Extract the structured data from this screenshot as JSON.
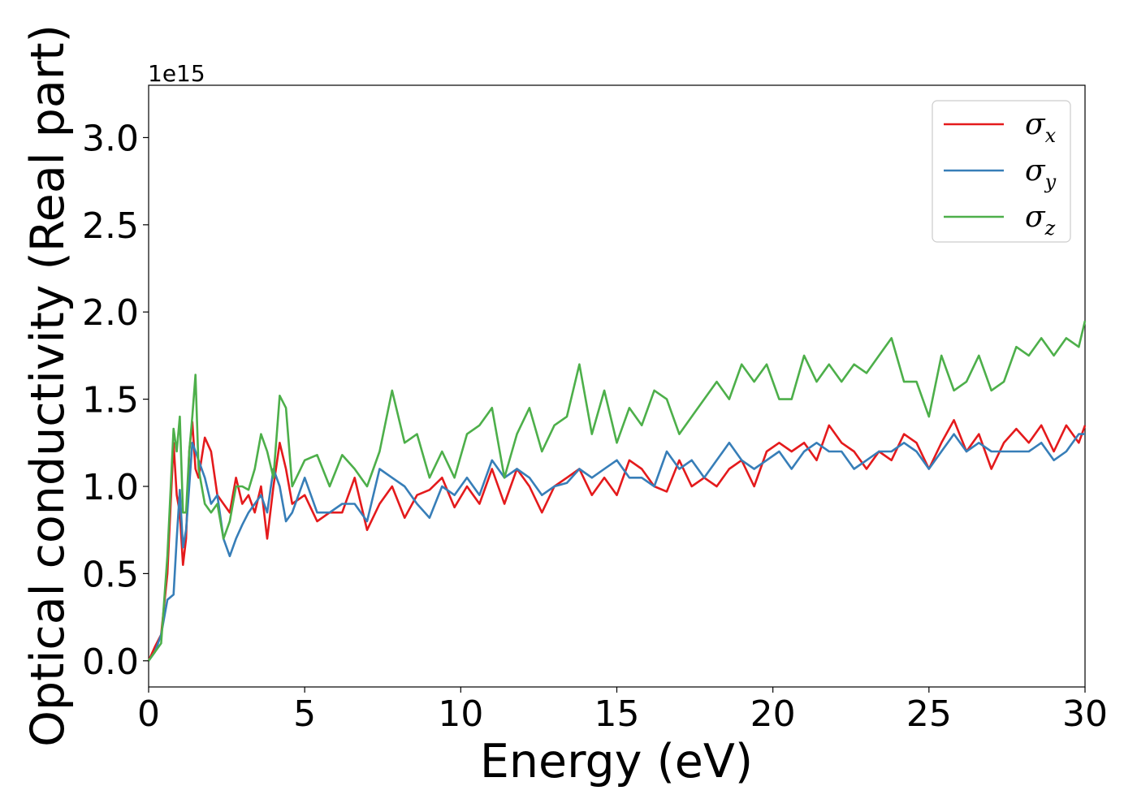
{
  "chart_data": {
    "type": "line",
    "xlabel": "Energy (eV)",
    "ylabel": "Optical conductivity (Real part)",
    "y_offset_label": "1e15",
    "xlim": [
      0,
      30
    ],
    "ylim": [
      -0.15,
      3.3
    ],
    "xticks": [
      0,
      5,
      10,
      15,
      20,
      25,
      30
    ],
    "xtick_labels": [
      "0",
      "5",
      "10",
      "15",
      "20",
      "25",
      "30"
    ],
    "yticks": [
      0.0,
      0.5,
      1.0,
      1.5,
      2.0,
      2.5,
      3.0
    ],
    "ytick_labels": [
      "0.0",
      "0.5",
      "1.0",
      "1.5",
      "2.0",
      "2.5",
      "3.0"
    ],
    "grid": false,
    "legend_position": "top-right",
    "series": [
      {
        "name": "σx",
        "symbol": "σ",
        "subscript": "x",
        "color": "#e41a1c",
        "x": [
          0,
          0.2,
          0.4,
          0.6,
          0.8,
          0.9,
          1.0,
          1.1,
          1.2,
          1.3,
          1.4,
          1.5,
          1.6,
          1.8,
          2.0,
          2.2,
          2.4,
          2.6,
          2.8,
          3.0,
          3.2,
          3.4,
          3.6,
          3.8,
          4.0,
          4.2,
          4.4,
          4.6,
          5.0,
          5.4,
          5.8,
          6.2,
          6.6,
          7.0,
          7.4,
          7.8,
          8.2,
          8.6,
          9.0,
          9.4,
          9.8,
          10.2,
          10.6,
          11.0,
          11.4,
          11.8,
          12.2,
          12.6,
          13.0,
          13.4,
          13.8,
          14.2,
          14.6,
          15.0,
          15.4,
          15.8,
          16.2,
          16.6,
          17.0,
          17.4,
          17.8,
          18.2,
          18.6,
          19.0,
          19.4,
          19.8,
          20.2,
          20.6,
          21.0,
          21.4,
          21.8,
          22.2,
          22.6,
          23.0,
          23.4,
          23.8,
          24.2,
          24.6,
          25.0,
          25.4,
          25.8,
          26.2,
          26.6,
          27.0,
          27.4,
          27.8,
          28.2,
          28.6,
          29.0,
          29.4,
          29.8,
          30.0
        ],
        "y": [
          0.0,
          0.08,
          0.15,
          0.5,
          1.25,
          0.95,
          0.85,
          0.55,
          0.7,
          1.2,
          1.37,
          1.1,
          1.05,
          1.28,
          1.2,
          0.95,
          0.9,
          0.85,
          1.05,
          0.9,
          0.95,
          0.85,
          1.0,
          0.7,
          1.0,
          1.25,
          1.1,
          0.9,
          0.95,
          0.8,
          0.85,
          0.85,
          1.05,
          0.75,
          0.9,
          1.0,
          0.82,
          0.95,
          0.98,
          1.05,
          0.88,
          1.0,
          0.9,
          1.1,
          0.9,
          1.1,
          1.0,
          0.85,
          1.0,
          1.05,
          1.1,
          0.95,
          1.05,
          0.95,
          1.15,
          1.1,
          1.0,
          0.97,
          1.15,
          1.0,
          1.05,
          1.0,
          1.1,
          1.15,
          1.0,
          1.2,
          1.25,
          1.2,
          1.25,
          1.15,
          1.35,
          1.25,
          1.2,
          1.1,
          1.2,
          1.15,
          1.3,
          1.25,
          1.1,
          1.25,
          1.38,
          1.2,
          1.3,
          1.1,
          1.25,
          1.33,
          1.25,
          1.35,
          1.2,
          1.35,
          1.25,
          1.35
        ]
      },
      {
        "name": "σy",
        "symbol": "σ",
        "subscript": "y",
        "color": "#377eb8",
        "x": [
          0,
          0.2,
          0.4,
          0.6,
          0.8,
          0.9,
          1.0,
          1.1,
          1.2,
          1.3,
          1.4,
          1.5,
          1.6,
          1.8,
          2.0,
          2.2,
          2.4,
          2.6,
          2.8,
          3.0,
          3.2,
          3.4,
          3.6,
          3.8,
          4.0,
          4.2,
          4.4,
          4.6,
          5.0,
          5.4,
          5.8,
          6.2,
          6.6,
          7.0,
          7.4,
          7.8,
          8.2,
          8.6,
          9.0,
          9.4,
          9.8,
          10.2,
          10.6,
          11.0,
          11.4,
          11.8,
          12.2,
          12.6,
          13.0,
          13.4,
          13.8,
          14.2,
          14.6,
          15.0,
          15.4,
          15.8,
          16.2,
          16.6,
          17.0,
          17.4,
          17.8,
          18.2,
          18.6,
          19.0,
          19.4,
          19.8,
          20.2,
          20.6,
          21.0,
          21.4,
          21.8,
          22.2,
          22.6,
          23.0,
          23.4,
          23.8,
          24.2,
          24.6,
          25.0,
          25.4,
          25.8,
          26.2,
          26.6,
          27.0,
          27.4,
          27.8,
          28.2,
          28.6,
          29.0,
          29.4,
          29.8,
          30.0
        ],
        "y": [
          0.0,
          0.05,
          0.15,
          0.35,
          0.38,
          0.7,
          0.98,
          0.65,
          0.75,
          1.0,
          1.25,
          1.2,
          1.15,
          1.05,
          0.9,
          0.95,
          0.7,
          0.6,
          0.7,
          0.78,
          0.85,
          0.9,
          0.95,
          0.85,
          1.1,
          1.0,
          0.8,
          0.85,
          1.05,
          0.85,
          0.85,
          0.9,
          0.9,
          0.8,
          1.1,
          1.05,
          1.0,
          0.9,
          0.82,
          1.0,
          0.95,
          1.05,
          0.95,
          1.15,
          1.05,
          1.1,
          1.05,
          0.95,
          1.0,
          1.02,
          1.1,
          1.05,
          1.1,
          1.15,
          1.05,
          1.05,
          1.0,
          1.2,
          1.1,
          1.15,
          1.05,
          1.15,
          1.25,
          1.15,
          1.1,
          1.15,
          1.2,
          1.1,
          1.2,
          1.25,
          1.2,
          1.2,
          1.1,
          1.15,
          1.2,
          1.2,
          1.25,
          1.2,
          1.1,
          1.2,
          1.3,
          1.2,
          1.25,
          1.2,
          1.2,
          1.2,
          1.2,
          1.25,
          1.15,
          1.2,
          1.3,
          1.3
        ]
      },
      {
        "name": "σz",
        "symbol": "σ",
        "subscript": "z",
        "color": "#4daf4a",
        "x": [
          0,
          0.2,
          0.4,
          0.6,
          0.8,
          0.9,
          1.0,
          1.1,
          1.2,
          1.3,
          1.4,
          1.5,
          1.6,
          1.8,
          2.0,
          2.2,
          2.4,
          2.6,
          2.8,
          3.0,
          3.2,
          3.4,
          3.6,
          3.8,
          4.0,
          4.2,
          4.4,
          4.6,
          5.0,
          5.4,
          5.8,
          6.2,
          6.6,
          7.0,
          7.4,
          7.8,
          8.2,
          8.6,
          9.0,
          9.4,
          9.8,
          10.2,
          10.6,
          11.0,
          11.4,
          11.8,
          12.2,
          12.6,
          13.0,
          13.4,
          13.8,
          14.2,
          14.6,
          15.0,
          15.4,
          15.8,
          16.2,
          16.6,
          17.0,
          17.4,
          17.8,
          18.2,
          18.6,
          19.0,
          19.4,
          19.8,
          20.2,
          20.6,
          21.0,
          21.4,
          21.8,
          22.2,
          22.6,
          23.0,
          23.4,
          23.8,
          24.2,
          24.6,
          25.0,
          25.4,
          25.8,
          26.2,
          26.6,
          27.0,
          27.4,
          27.8,
          28.2,
          28.6,
          29.0,
          29.4,
          29.8,
          30.0
        ],
        "y": [
          0.0,
          0.05,
          0.1,
          0.6,
          1.33,
          1.2,
          1.4,
          0.85,
          0.85,
          1.2,
          1.4,
          1.64,
          1.1,
          0.9,
          0.85,
          0.9,
          0.7,
          0.8,
          1.0,
          1.0,
          0.98,
          1.1,
          1.3,
          1.2,
          1.05,
          1.52,
          1.45,
          1.0,
          1.15,
          1.18,
          1.0,
          1.18,
          1.1,
          1.0,
          1.2,
          1.55,
          1.25,
          1.3,
          1.05,
          1.2,
          1.05,
          1.3,
          1.35,
          1.45,
          1.05,
          1.3,
          1.45,
          1.2,
          1.35,
          1.4,
          1.7,
          1.3,
          1.55,
          1.25,
          1.45,
          1.35,
          1.55,
          1.5,
          1.3,
          1.4,
          1.5,
          1.6,
          1.5,
          1.7,
          1.6,
          1.7,
          1.5,
          1.5,
          1.75,
          1.6,
          1.7,
          1.6,
          1.7,
          1.65,
          1.75,
          1.85,
          1.6,
          1.6,
          1.4,
          1.75,
          1.55,
          1.6,
          1.75,
          1.55,
          1.6,
          1.8,
          1.75,
          1.85,
          1.75,
          1.85,
          1.8,
          1.95
        ]
      }
    ]
  }
}
